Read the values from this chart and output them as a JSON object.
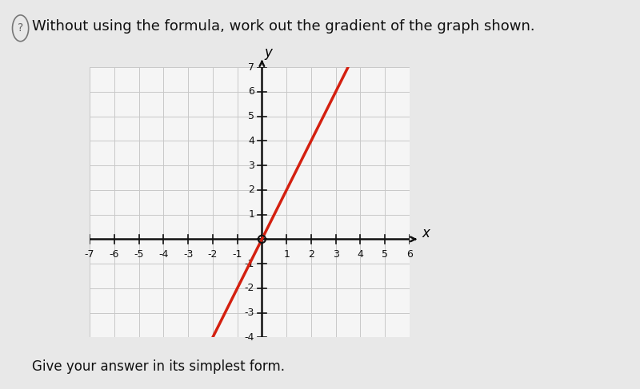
{
  "title": "Without using the formula, work out the gradient of the graph shown.",
  "subtitle": "Give your answer in its simplest form.",
  "bg_color": "#e8e8e8",
  "plot_bg_color": "#f5f5f5",
  "grid_color": "#c8c8c8",
  "axis_color": "#111111",
  "line_color": "#d42010",
  "x_min": -7,
  "x_max": 6,
  "y_min": -4,
  "y_max": 7,
  "gradient": 2,
  "intercept": 0,
  "line_x_start": -2.0,
  "line_x_end": 3.5,
  "title_fontsize": 13,
  "subtitle_fontsize": 12,
  "tick_fontsize": 9,
  "axis_label_fontsize": 12,
  "icon_fontsize": 10
}
